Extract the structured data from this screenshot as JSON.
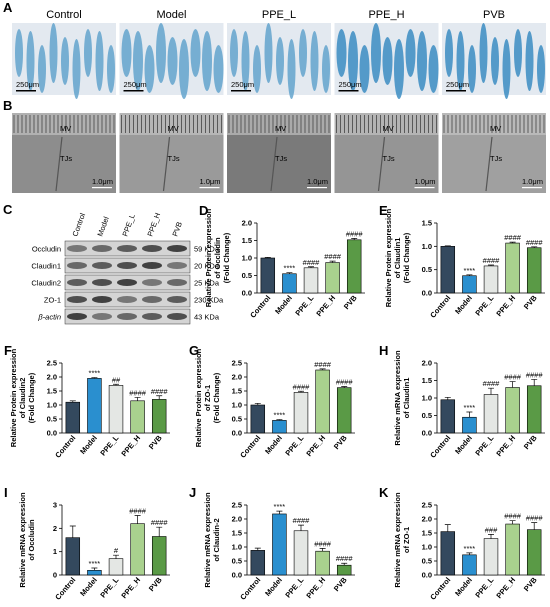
{
  "panel_a": {
    "label": "A",
    "groups": [
      "Control",
      "Model",
      "PPE_L",
      "PPE_H",
      "PVB"
    ],
    "scale_bar": "250μm"
  },
  "panel_b": {
    "label": "B",
    "annotations": [
      "MV",
      "TJs"
    ],
    "scale_bar": "1.0μm"
  },
  "panel_c": {
    "label": "C",
    "lanes": [
      "Control",
      "Model",
      "PPE_L",
      "PPE_H",
      "PVB"
    ],
    "proteins": [
      "Occludin",
      "Claudin1",
      "Claudin2",
      "ZO-1",
      "β-actin"
    ],
    "sizes": [
      "59 KDa",
      "20 KDa",
      "25 KDa",
      "230 KDa",
      "43 KDa"
    ]
  },
  "chart_data": [
    {
      "type": "bar",
      "label": "D",
      "ylabel": [
        "Relative Protein expression",
        "of Occludin",
        "(Fold Change)"
      ],
      "categories": [
        "Control",
        "Model",
        "PPE_L",
        "PPE_H",
        "PVB"
      ],
      "values": [
        1.0,
        0.55,
        0.72,
        0.87,
        1.52
      ],
      "errors": [
        0.02,
        0.03,
        0.03,
        0.04,
        0.04
      ],
      "annotations": [
        null,
        "****",
        "####",
        "####",
        "####"
      ],
      "colors": [
        "#34495e",
        "#2a8fcf",
        "#e4e7e4",
        "#a9d18e",
        "#5a9a46"
      ],
      "ylim": [
        0,
        2.0
      ],
      "yticks": [
        {
          "value": 0,
          "label": "0.0"
        },
        0.5,
        {
          "value": 1,
          "label": "1.0"
        },
        1.5,
        {
          "value": 2,
          "label": "2.0"
        }
      ]
    },
    {
      "type": "bar",
      "label": "E",
      "ylabel": [
        "Relative Protein expression",
        "of Claudin1",
        "(Fold Change)"
      ],
      "categories": [
        "Control",
        "Model",
        "PPE_L",
        "PPE_H",
        "PVB"
      ],
      "values": [
        1.0,
        0.37,
        0.58,
        1.07,
        0.97
      ],
      "errors": [
        0.01,
        0.02,
        0.02,
        0.02,
        0.02
      ],
      "annotations": [
        null,
        "****",
        "####",
        "####",
        "####"
      ],
      "colors": [
        "#34495e",
        "#2a8fcf",
        "#e4e7e4",
        "#a9d18e",
        "#5a9a46"
      ],
      "ylim": [
        0,
        1.5
      ],
      "yticks": [
        {
          "value": 0,
          "label": "0.0"
        },
        0.5,
        {
          "value": 1,
          "label": "1.0"
        },
        1.5
      ]
    },
    {
      "type": "bar",
      "label": "F",
      "ylabel": [
        "Relative Protein expression",
        "of Claudin2",
        "(Fold Change)"
      ],
      "categories": [
        "Control",
        "Model",
        "PPE_L",
        "PPE_H",
        "PVB"
      ],
      "values": [
        1.1,
        1.95,
        1.7,
        1.15,
        1.2
      ],
      "errors": [
        0.05,
        0.03,
        0.04,
        0.12,
        0.13
      ],
      "annotations": [
        null,
        "****",
        "##",
        "####",
        "####"
      ],
      "colors": [
        "#34495e",
        "#2a8fcf",
        "#e4e7e4",
        "#a9d18e",
        "#5a9a46"
      ],
      "ylim": [
        0,
        2.5
      ],
      "yticks": [
        {
          "value": 0,
          "label": "0.0"
        },
        0.5,
        {
          "value": 1,
          "label": "1.0"
        },
        1.5,
        {
          "value": 2,
          "label": "2.0"
        },
        2.5
      ]
    },
    {
      "type": "bar",
      "label": "G",
      "ylabel": [
        "Relative Protein expression",
        "of ZO-1",
        "(Fold Change)"
      ],
      "categories": [
        "Control",
        "Model",
        "PPE_L",
        "PPE_H",
        "PVB"
      ],
      "values": [
        1.0,
        0.45,
        1.45,
        2.25,
        1.62
      ],
      "errors": [
        0.06,
        0.03,
        0.04,
        0.04,
        0.04
      ],
      "annotations": [
        null,
        "****",
        "####",
        "####",
        "####"
      ],
      "colors": [
        "#34495e",
        "#2a8fcf",
        "#e4e7e4",
        "#a9d18e",
        "#5a9a46"
      ],
      "ylim": [
        0,
        2.5
      ],
      "yticks": [
        {
          "value": 0,
          "label": "0.0"
        },
        0.5,
        {
          "value": 1,
          "label": "1.0"
        },
        1.5,
        {
          "value": 2,
          "label": "2.0"
        },
        2.5
      ]
    },
    {
      "type": "bar",
      "label": "H",
      "ylabel": [
        "Relative mRNA expression",
        "of Claudin1"
      ],
      "categories": [
        "Control",
        "Model",
        "PPE_L",
        "PPE_H",
        "PVB"
      ],
      "values": [
        0.95,
        0.45,
        1.1,
        1.3,
        1.35
      ],
      "errors": [
        0.07,
        0.15,
        0.18,
        0.17,
        0.18
      ],
      "annotations": [
        null,
        "****",
        "####",
        "####",
        "####"
      ],
      "colors": [
        "#34495e",
        "#2a8fcf",
        "#e4e7e4",
        "#a9d18e",
        "#5a9a46"
      ],
      "ylim": [
        0,
        2.0
      ],
      "yticks": [
        {
          "value": 0,
          "label": "0.0"
        },
        0.5,
        {
          "value": 1,
          "label": "1.0"
        },
        1.5,
        {
          "value": 2,
          "label": "2.0"
        }
      ]
    },
    {
      "type": "bar",
      "label": "I",
      "ylabel": [
        "Relative mRNA expression",
        "of Occludin"
      ],
      "categories": [
        "Control",
        "Model",
        "PPE_L",
        "PPE_H",
        "PVB"
      ],
      "values": [
        1.6,
        0.2,
        0.7,
        2.2,
        1.65
      ],
      "errors": [
        0.5,
        0.1,
        0.15,
        0.35,
        0.4
      ],
      "annotations": [
        null,
        "****",
        "#",
        "####",
        "####"
      ],
      "colors": [
        "#34495e",
        "#2a8fcf",
        "#e4e7e4",
        "#a9d18e",
        "#5a9a46"
      ],
      "ylim": [
        0,
        3
      ],
      "yticks": [
        0,
        1,
        2,
        3
      ]
    },
    {
      "type": "bar",
      "label": "J",
      "ylabel": [
        "Relative mRNA expression",
        "of Claudin-2"
      ],
      "categories": [
        "Control",
        "Model",
        "PPE_L",
        "PPE_H",
        "PVB"
      ],
      "values": [
        0.88,
        2.18,
        1.58,
        0.85,
        0.35
      ],
      "errors": [
        0.08,
        0.1,
        0.2,
        0.1,
        0.07
      ],
      "annotations": [
        null,
        "****",
        "####",
        "####",
        "####"
      ],
      "colors": [
        "#34495e",
        "#2a8fcf",
        "#e4e7e4",
        "#a9d18e",
        "#5a9a46"
      ],
      "ylim": [
        0,
        2.5
      ],
      "yticks": [
        {
          "value": 0,
          "label": "0.0"
        },
        0.5,
        {
          "value": 1,
          "label": "1.0"
        },
        1.5,
        {
          "value": 2,
          "label": "2.0"
        },
        2.5
      ]
    },
    {
      "type": "bar",
      "label": "K",
      "ylabel": [
        "Relative mRNA expression",
        "of ZO-1"
      ],
      "categories": [
        "Control",
        "Model",
        "PPE_L",
        "PPE_H",
        "PVB"
      ],
      "values": [
        1.55,
        0.72,
        1.3,
        1.82,
        1.62
      ],
      "errors": [
        0.25,
        0.07,
        0.15,
        0.12,
        0.25
      ],
      "annotations": [
        null,
        "****",
        "###",
        "####",
        "####"
      ],
      "colors": [
        "#34495e",
        "#2a8fcf",
        "#e4e7e4",
        "#a9d18e",
        "#5a9a46"
      ],
      "ylim": [
        0,
        2.5
      ],
      "yticks": [
        {
          "value": 0,
          "label": "0.0"
        },
        0.5,
        {
          "value": 1,
          "label": "1.0"
        },
        1.5,
        {
          "value": 2,
          "label": "2.0"
        },
        2.5
      ]
    }
  ]
}
